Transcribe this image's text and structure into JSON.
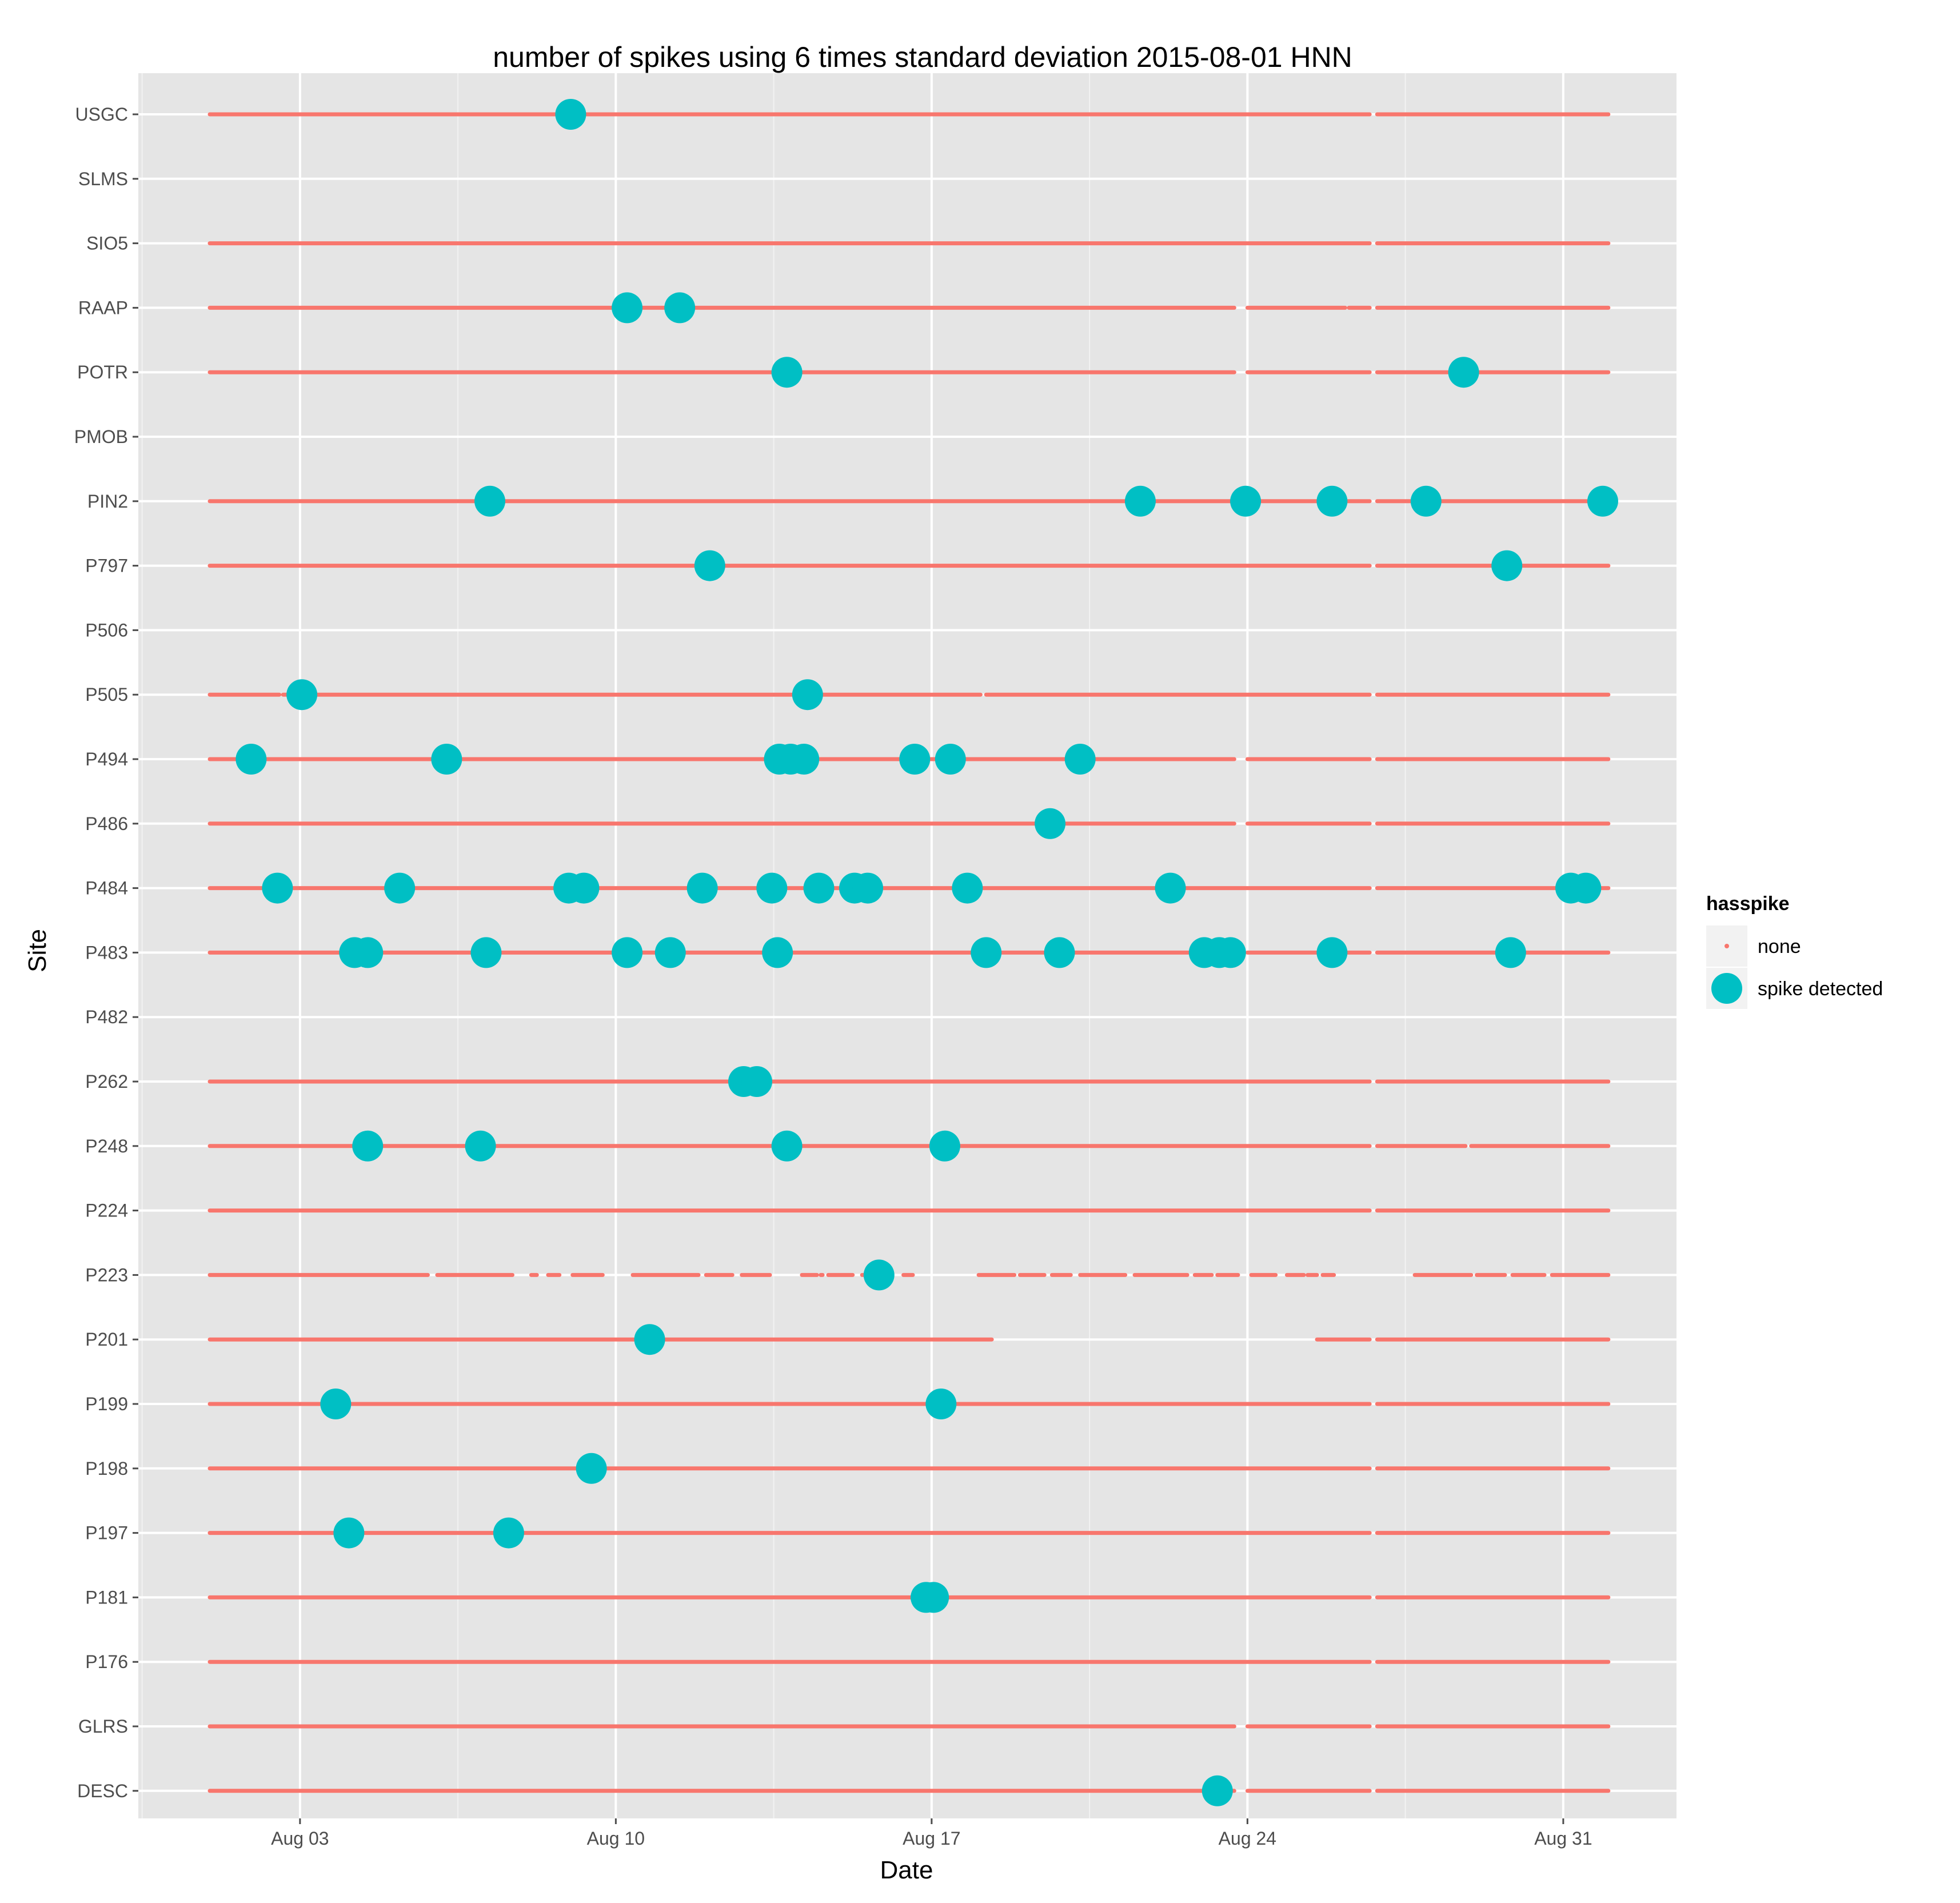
{
  "chart_data": {
    "type": "scatter",
    "title": "number of spikes using  6 times standard deviation 2015-08-01 HNN",
    "xlabel": "Date",
    "ylabel": "Site",
    "x_range": [
      "2015-08-01T00:00",
      "2015-09-02T00:00"
    ],
    "x_ticks": [
      {
        "date": "2015-08-03",
        "label": "Aug 03"
      },
      {
        "date": "2015-08-10",
        "label": "Aug 10"
      },
      {
        "date": "2015-08-17",
        "label": "Aug 17"
      },
      {
        "date": "2015-08-24",
        "label": "Aug 24"
      },
      {
        "date": "2015-08-31",
        "label": "Aug 31"
      }
    ],
    "sites": [
      "USGC",
      "SLMS",
      "SIO5",
      "RAAP",
      "POTR",
      "PMOB",
      "PIN2",
      "P797",
      "P506",
      "P505",
      "P494",
      "P486",
      "P484",
      "P483",
      "P482",
      "P262",
      "P248",
      "P224",
      "P223",
      "P201",
      "P199",
      "P198",
      "P197",
      "P181",
      "P176",
      "GLRS",
      "DESC"
    ],
    "grid": true,
    "legend": {
      "title": "hasspike",
      "position": "right",
      "items": [
        {
          "label": "none",
          "color": "#F8766D"
        },
        {
          "label": "spike detected",
          "color": "#00BFC4"
        }
      ]
    },
    "series": [
      {
        "name": "none",
        "color": "#F8766D",
        "segments": {
          "USGC": [
            [
              "2015-08-01T00:00",
              "2015-08-26T17:00"
            ],
            [
              "2015-08-26T21:00",
              "2015-09-01T00:00"
            ]
          ],
          "SIO5": [
            [
              "2015-08-01T00:00",
              "2015-08-26T17:00"
            ],
            [
              "2015-08-26T21:00",
              "2015-09-01T00:00"
            ]
          ],
          "RAAP": [
            [
              "2015-08-01T00:00",
              "2015-08-23T17:00"
            ],
            [
              "2015-08-24T00:00",
              "2015-08-26T04:00"
            ],
            [
              "2015-08-26T06:00",
              "2015-08-26T17:00"
            ],
            [
              "2015-08-26T21:00",
              "2015-09-01T00:00"
            ]
          ],
          "POTR": [
            [
              "2015-08-01T00:00",
              "2015-08-23T17:00"
            ],
            [
              "2015-08-24T00:00",
              "2015-08-26T17:00"
            ],
            [
              "2015-08-26T21:00",
              "2015-09-01T00:00"
            ]
          ],
          "PIN2": [
            [
              "2015-08-01T00:00",
              "2015-08-26T17:00"
            ],
            [
              "2015-08-26T21:00",
              "2015-09-01T00:00"
            ]
          ],
          "P797": [
            [
              "2015-08-01T00:00",
              "2015-08-26T17:00"
            ],
            [
              "2015-08-26T21:00",
              "2015-09-01T00:00"
            ]
          ],
          "P505": [
            [
              "2015-08-01T00:00",
              "2015-08-02T13:00"
            ],
            [
              "2015-08-02T15:00",
              "2015-08-14T07:00"
            ],
            [
              "2015-08-14T10:00",
              "2015-08-18T02:00"
            ],
            [
              "2015-08-18T05:00",
              "2015-08-26T17:00"
            ],
            [
              "2015-08-26T21:00",
              "2015-09-01T00:00"
            ]
          ],
          "P494": [
            [
              "2015-08-01T00:00",
              "2015-08-23T17:00"
            ],
            [
              "2015-08-24T00:00",
              "2015-08-26T17:00"
            ],
            [
              "2015-08-26T21:00",
              "2015-09-01T00:00"
            ]
          ],
          "P486": [
            [
              "2015-08-01T00:00",
              "2015-08-23T17:00"
            ],
            [
              "2015-08-24T00:00",
              "2015-08-26T17:00"
            ],
            [
              "2015-08-26T21:00",
              "2015-09-01T00:00"
            ]
          ],
          "P484": [
            [
              "2015-08-01T00:00",
              "2015-08-26T17:00"
            ],
            [
              "2015-08-26T21:00",
              "2015-09-01T00:00"
            ]
          ],
          "P483": [
            [
              "2015-08-01T00:00",
              "2015-08-23T17:00"
            ],
            [
              "2015-08-24T00:00",
              "2015-08-26T17:00"
            ],
            [
              "2015-08-26T21:00",
              "2015-09-01T00:00"
            ]
          ],
          "P262": [
            [
              "2015-08-01T00:00",
              "2015-08-26T17:00"
            ],
            [
              "2015-08-26T21:00",
              "2015-09-01T00:00"
            ]
          ],
          "P248": [
            [
              "2015-08-01T00:00",
              "2015-08-26T17:00"
            ],
            [
              "2015-08-26T21:00",
              "2015-08-28T20:00"
            ],
            [
              "2015-08-28T23:00",
              "2015-09-01T00:00"
            ]
          ],
          "P224": [
            [
              "2015-08-01T00:00",
              "2015-08-26T17:00"
            ],
            [
              "2015-08-26T21:00",
              "2015-09-01T00:00"
            ]
          ],
          "P223": [
            [
              "2015-08-01T00:00",
              "2015-08-05T20:00"
            ],
            [
              "2015-08-06T01:00",
              "2015-08-07T17:00"
            ],
            [
              "2015-08-08T03:00",
              "2015-08-08T06:00"
            ],
            [
              "2015-08-08T12:00",
              "2015-08-08T18:00"
            ],
            [
              "2015-08-09T01:00",
              "2015-08-09T17:00"
            ],
            [
              "2015-08-10T09:00",
              "2015-08-11T20:00"
            ],
            [
              "2015-08-12T00:00",
              "2015-08-12T14:00"
            ],
            [
              "2015-08-12T19:00",
              "2015-08-13T10:00"
            ],
            [
              "2015-08-14T03:00",
              "2015-08-14T11:00"
            ],
            [
              "2015-08-14T13:00",
              "2015-08-14T14:00"
            ],
            [
              "2015-08-14T17:00",
              "2015-08-15T06:00"
            ],
            [
              "2015-08-15T11:00",
              "2015-08-16T01:00"
            ],
            [
              "2015-08-16T09:00",
              "2015-08-16T14:00"
            ],
            [
              "2015-08-18T01:00",
              "2015-08-18T20:00"
            ],
            [
              "2015-08-18T23:00",
              "2015-08-19T12:00"
            ],
            [
              "2015-08-19T16:00",
              "2015-08-20T02:00"
            ],
            [
              "2015-08-20T07:00",
              "2015-08-21T07:00"
            ],
            [
              "2015-08-21T12:00",
              "2015-08-22T16:00"
            ],
            [
              "2015-08-22T20:00",
              "2015-08-23T05:00"
            ],
            [
              "2015-08-23T08:00",
              "2015-08-23T19:00"
            ],
            [
              "2015-08-24T02:00",
              "2015-08-24T15:00"
            ],
            [
              "2015-08-24T21:00",
              "2015-08-25T06:00"
            ],
            [
              "2015-08-25T08:00",
              "2015-08-25T13:00"
            ],
            [
              "2015-08-25T16:00",
              "2015-08-25T22:00"
            ],
            [
              "2015-08-27T17:00",
              "2015-08-28T23:00"
            ],
            [
              "2015-08-29T02:00",
              "2015-08-29T17:00"
            ],
            [
              "2015-08-29T21:00",
              "2015-08-30T14:00"
            ],
            [
              "2015-08-30T18:00",
              "2015-09-01T00:00"
            ]
          ],
          "P201": [
            [
              "2015-08-01T00:00",
              "2015-08-18T08:00"
            ],
            [
              "2015-08-25T13:00",
              "2015-08-26T17:00"
            ],
            [
              "2015-08-26T21:00",
              "2015-09-01T00:00"
            ]
          ],
          "P199": [
            [
              "2015-08-01T00:00",
              "2015-08-26T17:00"
            ],
            [
              "2015-08-26T21:00",
              "2015-09-01T00:00"
            ]
          ],
          "P198": [
            [
              "2015-08-01T00:00",
              "2015-08-26T17:00"
            ],
            [
              "2015-08-26T21:00",
              "2015-09-01T00:00"
            ]
          ],
          "P197": [
            [
              "2015-08-01T00:00",
              "2015-08-26T17:00"
            ],
            [
              "2015-08-26T21:00",
              "2015-09-01T00:00"
            ]
          ],
          "P181": [
            [
              "2015-08-01T00:00",
              "2015-08-26T17:00"
            ],
            [
              "2015-08-26T21:00",
              "2015-09-01T00:00"
            ]
          ],
          "P176": [
            [
              "2015-08-01T00:00",
              "2015-08-26T17:00"
            ],
            [
              "2015-08-26T21:00",
              "2015-09-01T00:00"
            ]
          ],
          "GLRS": [
            [
              "2015-08-01T00:00",
              "2015-08-23T17:00"
            ],
            [
              "2015-08-24T00:00",
              "2015-08-26T17:00"
            ],
            [
              "2015-08-26T21:00",
              "2015-09-01T00:00"
            ]
          ],
          "DESC": [
            [
              "2015-08-01T00:00",
              "2015-08-23T17:00"
            ],
            [
              "2015-08-24T00:00",
              "2015-08-26T17:00"
            ],
            [
              "2015-08-26T21:00",
              "2015-09-01T00:00"
            ]
          ]
        }
      },
      {
        "name": "spike detected",
        "color": "#00BFC4",
        "points": {
          "USGC": [
            "2015-08-09T00:00"
          ],
          "RAAP": [
            "2015-08-10T06:00",
            "2015-08-11T10:00"
          ],
          "POTR": [
            "2015-08-13T19:00",
            "2015-08-28T19:00"
          ],
          "PIN2": [
            "2015-08-07T05:00",
            "2015-08-21T15:00",
            "2015-08-23T23:00",
            "2015-08-25T21:00",
            "2015-08-27T23:00",
            "2015-08-31T21:00"
          ],
          "P797": [
            "2015-08-12T02:00",
            "2015-08-29T18:00"
          ],
          "P505": [
            "2015-08-03T01:00",
            "2015-08-14T06:00"
          ],
          "P494": [
            "2015-08-01T22:00",
            "2015-08-06T06:00",
            "2015-08-13T15:00",
            "2015-08-13T21:00",
            "2015-08-14T04:00",
            "2015-08-16T15:00",
            "2015-08-17T10:00",
            "2015-08-20T07:00"
          ],
          "P486": [
            "2015-08-19T15:00"
          ],
          "P484": [
            "2015-08-02T12:00",
            "2015-08-05T05:00",
            "2015-08-08T23:00",
            "2015-08-09T07:00",
            "2015-08-11T22:00",
            "2015-08-13T11:00",
            "2015-08-14T12:00",
            "2015-08-15T07:00",
            "2015-08-15T14:00",
            "2015-08-17T19:00",
            "2015-08-22T07:00",
            "2015-08-31T04:00",
            "2015-08-31T12:00"
          ],
          "P483": [
            "2015-08-04T05:00",
            "2015-08-04T12:00",
            "2015-08-07T03:00",
            "2015-08-10T06:00",
            "2015-08-11T05:00",
            "2015-08-13T14:00",
            "2015-08-18T05:00",
            "2015-08-19T20:00",
            "2015-08-23T01:00",
            "2015-08-23T09:00",
            "2015-08-23T15:00",
            "2015-08-25T21:00",
            "2015-08-29T20:00"
          ],
          "P262": [
            "2015-08-12T20:00",
            "2015-08-13T03:00"
          ],
          "P248": [
            "2015-08-04T12:00",
            "2015-08-07T00:00",
            "2015-08-13T19:00",
            "2015-08-17T07:00"
          ],
          "P223": [
            "2015-08-15T20:00"
          ],
          "P201": [
            "2015-08-10T18:00"
          ],
          "P199": [
            "2015-08-03T19:00",
            "2015-08-17T05:00"
          ],
          "P198": [
            "2015-08-09T11:00"
          ],
          "P197": [
            "2015-08-04T02:00",
            "2015-08-07T15:00"
          ],
          "P181": [
            "2015-08-16T21:00",
            "2015-08-17T01:00"
          ],
          "DESC": [
            "2015-08-23T08:00"
          ]
        }
      }
    ]
  }
}
